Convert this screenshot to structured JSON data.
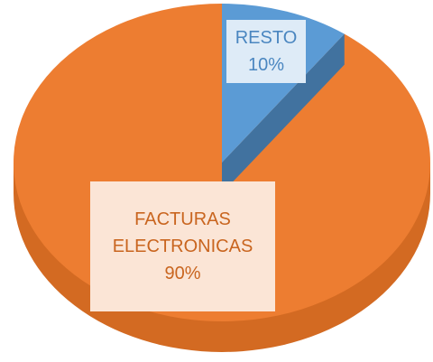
{
  "chart_data": {
    "type": "pie",
    "categories": [
      "RESTO",
      "FACTURAS ELECTRONICAS"
    ],
    "values": [
      10,
      90
    ],
    "value_labels": [
      "10%",
      "90%"
    ],
    "colors": [
      "#5b9bd5",
      "#ed7d31"
    ]
  }
}
